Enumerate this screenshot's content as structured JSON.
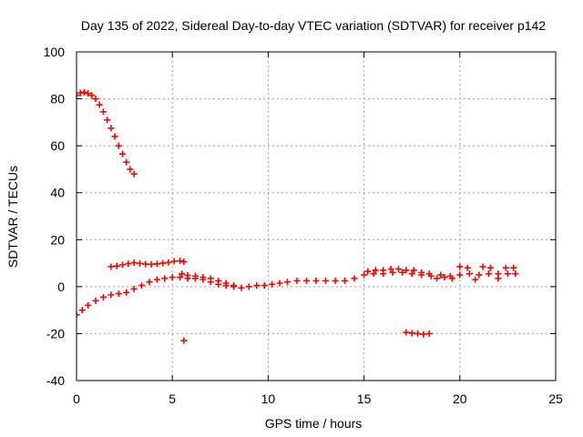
{
  "chart_data": {
    "type": "scatter",
    "title": "Day 135 of 2022, Sidereal Day-to-day VTEC variation (SDTVAR) for receiver p142",
    "xlabel": "GPS time / hours",
    "ylabel": "SDTVAR / TECUs",
    "xlim": [
      0,
      25
    ],
    "ylim": [
      -40,
      100
    ],
    "xticks": [
      0,
      5,
      10,
      15,
      20,
      25
    ],
    "yticks": [
      -40,
      -20,
      0,
      20,
      40,
      60,
      80,
      100
    ],
    "xtick_labels": [
      "0",
      "5",
      "10",
      "15",
      "20",
      "25"
    ],
    "ytick_labels": [
      "-40",
      "-20",
      "0",
      "20",
      "40",
      "60",
      "80",
      "100"
    ],
    "grid": true,
    "marker": "+",
    "color": "#ff0000",
    "series": [
      {
        "name": "upper-decay",
        "x": [
          0.0,
          0.2,
          0.4,
          0.6,
          0.8,
          1.0,
          1.2,
          1.4,
          1.6,
          1.8,
          2.0,
          2.2,
          2.4,
          2.6,
          2.8,
          3.0
        ],
        "y": [
          81.5,
          82.5,
          82.8,
          82.3,
          81.5,
          80.0,
          77.5,
          74.5,
          71.0,
          67.5,
          64.0,
          60.0,
          56.5,
          53.0,
          50.0,
          48.0
        ]
      },
      {
        "name": "upper-plateau",
        "x": [
          1.8,
          2.1,
          2.4,
          2.7,
          3.0,
          3.3,
          3.6,
          3.9,
          4.2,
          4.5,
          4.8,
          5.1,
          5.4,
          5.6
        ],
        "y": [
          8.5,
          8.8,
          9.3,
          9.8,
          10.2,
          9.9,
          9.6,
          9.5,
          9.7,
          10.0,
          10.3,
          10.8,
          11.0,
          10.6
        ]
      },
      {
        "name": "main-trend",
        "x": [
          0.0,
          0.3,
          0.6,
          1.0,
          1.4,
          1.8,
          2.2,
          2.6,
          3.0,
          3.4,
          3.8,
          4.2,
          4.6,
          5.0,
          5.4,
          5.8,
          6.2,
          6.6,
          7.0,
          7.4,
          7.8,
          8.2,
          8.6,
          9.0,
          9.4,
          9.8,
          10.2,
          10.6,
          11.0,
          11.5,
          12.0,
          12.5,
          13.0,
          13.5,
          14.0,
          14.5,
          15.0,
          15.5,
          16.0,
          16.5,
          17.0,
          17.5,
          18.0,
          18.5,
          19.0,
          19.5,
          20.0,
          20.5,
          21.0,
          21.5,
          22.0,
          22.5,
          22.9
        ],
        "y": [
          -12.0,
          -10.0,
          -8.0,
          -6.0,
          -4.5,
          -3.5,
          -3.0,
          -2.5,
          -1.0,
          0.5,
          2.0,
          3.0,
          3.5,
          4.0,
          4.0,
          3.5,
          3.5,
          3.0,
          2.0,
          1.0,
          0.5,
          0.0,
          -0.5,
          0.0,
          0.5,
          0.5,
          1.0,
          1.5,
          2.0,
          2.5,
          2.5,
          2.5,
          2.5,
          2.5,
          2.5,
          3.5,
          5.0,
          5.5,
          5.5,
          6.0,
          6.0,
          5.5,
          5.0,
          4.5,
          5.0,
          4.5,
          5.0,
          5.5,
          5.0,
          5.5,
          5.5,
          5.5,
          5.5
        ]
      },
      {
        "name": "main-spread",
        "x": [
          5.5,
          5.8,
          6.2,
          6.6,
          7.0,
          7.4,
          7.8,
          8.2,
          15.2,
          15.6,
          16.0,
          16.4,
          16.8,
          17.2,
          17.6,
          18.0,
          18.4,
          18.8,
          19.2,
          19.6,
          20.0,
          20.4,
          20.8,
          21.2,
          21.6,
          22.0,
          22.4,
          22.8
        ],
        "y": [
          5.5,
          4.8,
          4.5,
          4.0,
          3.5,
          2.5,
          1.5,
          0.5,
          6.5,
          7.0,
          7.0,
          7.5,
          7.5,
          7.0,
          7.0,
          6.0,
          5.5,
          3.5,
          4.0,
          3.5,
          8.5,
          8.0,
          3.0,
          8.5,
          8.0,
          3.5,
          8.0,
          8.0
        ]
      },
      {
        "name": "outliers",
        "x": [
          5.6,
          17.2,
          17.5,
          17.8,
          18.1,
          18.4
        ],
        "y": [
          -23.0,
          -19.5,
          -19.8,
          -20.0,
          -20.3,
          -20.0
        ]
      }
    ]
  }
}
